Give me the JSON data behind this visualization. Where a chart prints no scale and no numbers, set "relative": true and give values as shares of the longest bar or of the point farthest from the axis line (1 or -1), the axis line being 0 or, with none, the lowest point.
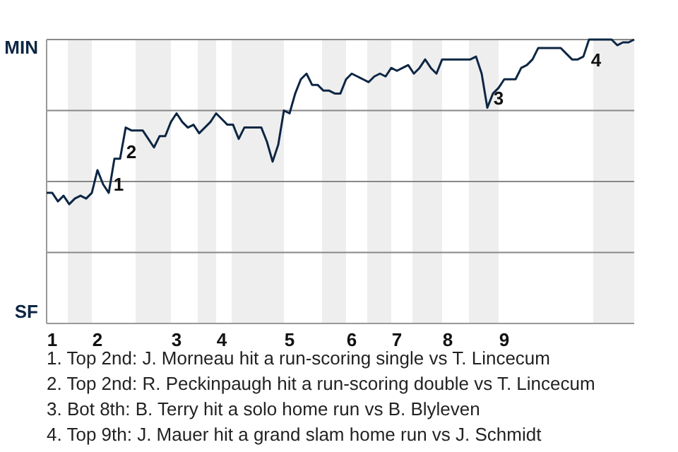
{
  "chart_data": {
    "type": "line",
    "relative": true,
    "grid": "y",
    "categories": [
      null,
      "1",
      null,
      null,
      null,
      null,
      null,
      null,
      null,
      "2",
      null,
      null,
      null,
      null,
      null,
      null,
      null,
      null,
      null,
      null,
      null,
      null,
      null,
      "3",
      null,
      null,
      null,
      null,
      null,
      null,
      null,
      "4",
      null,
      null,
      null,
      null,
      null,
      null,
      null,
      null,
      null,
      null,
      null,
      "5",
      null,
      null,
      null,
      null,
      null,
      null,
      null,
      null,
      null,
      null,
      "6",
      null,
      null,
      null,
      null,
      null,
      null,
      null,
      "7",
      null,
      null,
      null,
      null,
      null,
      null,
      null,
      null,
      "8",
      null,
      null,
      null,
      null,
      null,
      null,
      null,
      null,
      null,
      "9",
      null,
      null,
      null,
      null,
      null,
      null,
      null,
      null,
      null,
      null,
      null,
      null,
      null,
      null,
      null,
      null,
      null,
      null,
      null,
      null,
      null,
      null,
      null
    ],
    "series": [
      {
        "color": "#0d2644",
        "values": [
          0.46,
          0.46,
          0.43,
          0.45,
          0.42,
          0.44,
          0.45,
          0.44,
          0.46,
          0.54,
          0.49,
          0.46,
          0.58,
          0.58,
          0.69,
          0.68,
          0.68,
          0.68,
          0.65,
          0.62,
          0.66,
          0.66,
          0.71,
          0.74,
          0.71,
          0.69,
          0.7,
          0.67,
          0.69,
          0.71,
          0.74,
          0.72,
          0.7,
          0.7,
          0.65,
          0.69,
          0.69,
          0.69,
          0.69,
          0.64,
          0.57,
          0.63,
          0.75,
          0.74,
          0.81,
          0.86,
          0.88,
          0.84,
          0.84,
          0.82,
          0.82,
          0.81,
          0.81,
          0.86,
          0.88,
          0.87,
          0.86,
          0.85,
          0.87,
          0.88,
          0.87,
          0.9,
          0.89,
          0.9,
          0.91,
          0.88,
          0.9,
          0.93,
          0.9,
          0.88,
          0.93,
          0.93,
          0.93,
          0.93,
          0.93,
          0.93,
          0.94,
          0.88,
          0.76,
          0.81,
          0.83,
          0.86,
          0.86,
          0.86,
          0.9,
          0.91,
          0.93,
          0.97,
          0.97,
          0.97,
          0.97,
          0.97,
          0.95,
          0.93,
          0.93,
          0.94,
          1,
          1,
          1,
          1,
          1,
          0.98,
          0.99,
          0.99,
          1
        ]
      }
    ],
    "annotations": [
      "MIN",
      "SF",
      "1",
      "2",
      "3",
      "4",
      "1. Top 2nd: J. Morneau hit a run-scoring single vs T. Lincecum",
      "2. Top 2nd: R. Peckinpaugh hit a run-scoring double vs T. Lincecum",
      "3. Bot 8th: B. Terry hit a solo home run vs B. Blyleven",
      "4. Top 9th: J. Mauer hit a grand slam home run vs J. Schmidt"
    ]
  }
}
